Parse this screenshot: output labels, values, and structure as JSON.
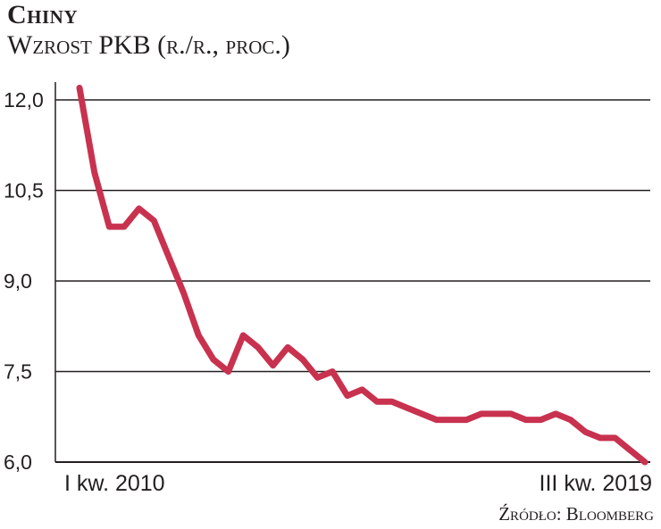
{
  "header": {
    "title": "Chiny",
    "subtitle": "Wzrost PKB (r./r., proc.)"
  },
  "footer": {
    "source": "Źródło: Bloomberg"
  },
  "colors": {
    "line": "#c8324f",
    "grid": "#231f20",
    "text": "#231f20"
  },
  "chart_data": {
    "type": "line",
    "title": "Chiny",
    "subtitle": "Wzrost PKB (r./r., proc.)",
    "xlabel": "",
    "ylabel": "",
    "ylim": [
      6.0,
      12.0
    ],
    "yticks": [
      12.0,
      10.5,
      9.0,
      7.5,
      6.0
    ],
    "ytick_labels": [
      "12,0",
      "10,5",
      "9,0",
      "7,5",
      "6,0"
    ],
    "x_labels": [
      "I kw. 2010",
      "III kw. 2019"
    ],
    "grid": true,
    "series": [
      {
        "values": [
          12.2,
          10.8,
          9.9,
          9.9,
          10.2,
          10.0,
          9.4,
          8.8,
          8.1,
          7.7,
          7.5,
          8.1,
          7.9,
          7.6,
          7.9,
          7.7,
          7.4,
          7.5,
          7.1,
          7.2,
          7.0,
          7.0,
          6.9,
          6.8,
          6.7,
          6.7,
          6.7,
          6.8,
          6.8,
          6.8,
          6.7,
          6.7,
          6.8,
          6.7,
          6.5,
          6.4,
          6.4,
          6.2,
          6.0
        ]
      }
    ]
  }
}
